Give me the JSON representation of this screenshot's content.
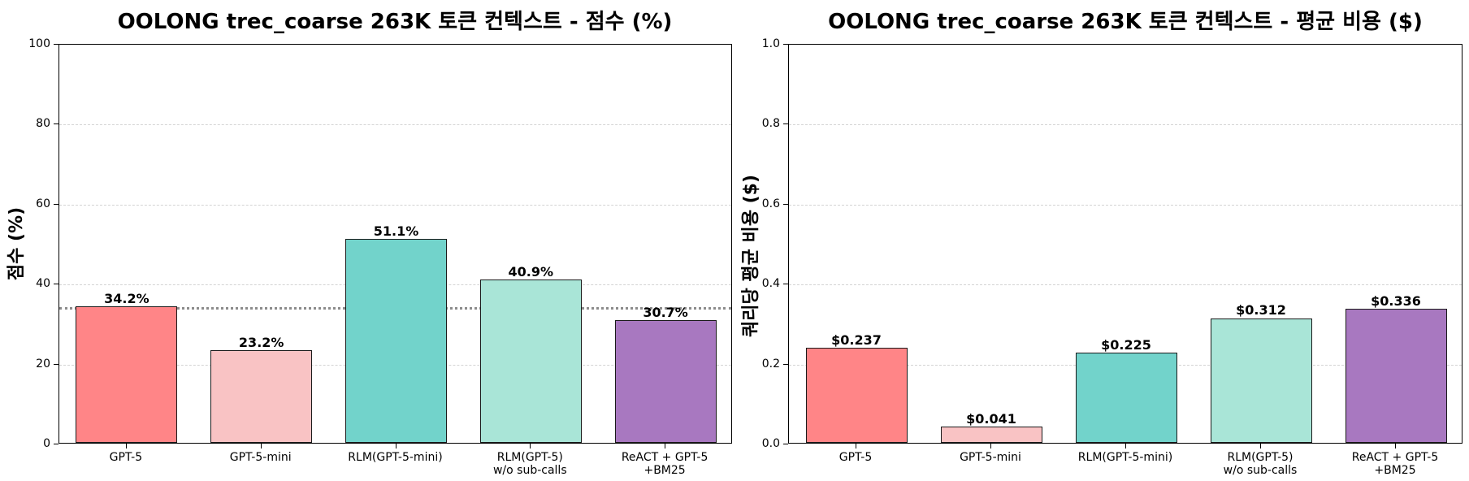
{
  "chart_data": [
    {
      "type": "bar",
      "title": "OOLONG trec_coarse 263K 토큰 컨텍스트 - 점수 (%)",
      "xlabel": "",
      "ylabel": "점수 (%)",
      "ylim": [
        0,
        100
      ],
      "yticks": [
        "0",
        "20",
        "40",
        "60",
        "80",
        "100"
      ],
      "grid": "horizontal dashed",
      "categories": [
        "GPT-5",
        "GPT-5-mini",
        "RLM(GPT-5-mini)",
        "RLM(GPT-5)\nw/o sub-calls",
        "ReACT + GPT-5\n+BM25"
      ],
      "values": [
        34.2,
        23.2,
        51.1,
        40.9,
        30.7
      ],
      "value_labels": [
        "34.2%",
        "23.2%",
        "51.1%",
        "40.9%",
        "30.7%"
      ],
      "colors": [
        "#ff8587",
        "#f9c3c4",
        "#72d3cb",
        "#a9e5d7",
        "#a878c0"
      ],
      "reference_line": {
        "value": 34.2,
        "style": "dotted",
        "color": "#8c8c8c"
      }
    },
    {
      "type": "bar",
      "title": "OOLONG trec_coarse 263K 토큰 컨텍스트 - 평균 비용 ($)",
      "xlabel": "",
      "ylabel": "쿼리당 평균 비용 ($)",
      "ylim": [
        0,
        1.0
      ],
      "yticks": [
        "0.0",
        "0.2",
        "0.4",
        "0.6",
        "0.8",
        "1.0"
      ],
      "grid": "horizontal dashed",
      "categories": [
        "GPT-5",
        "GPT-5-mini",
        "RLM(GPT-5-mini)",
        "RLM(GPT-5)\nw/o sub-calls",
        "ReACT + GPT-5\n+BM25"
      ],
      "values": [
        0.237,
        0.041,
        0.225,
        0.312,
        0.336
      ],
      "value_labels": [
        "$0.237",
        "$0.041",
        "$0.225",
        "$0.312",
        "$0.336"
      ],
      "colors": [
        "#ff8587",
        "#f9c3c4",
        "#72d3cb",
        "#a9e5d7",
        "#a878c0"
      ]
    }
  ]
}
